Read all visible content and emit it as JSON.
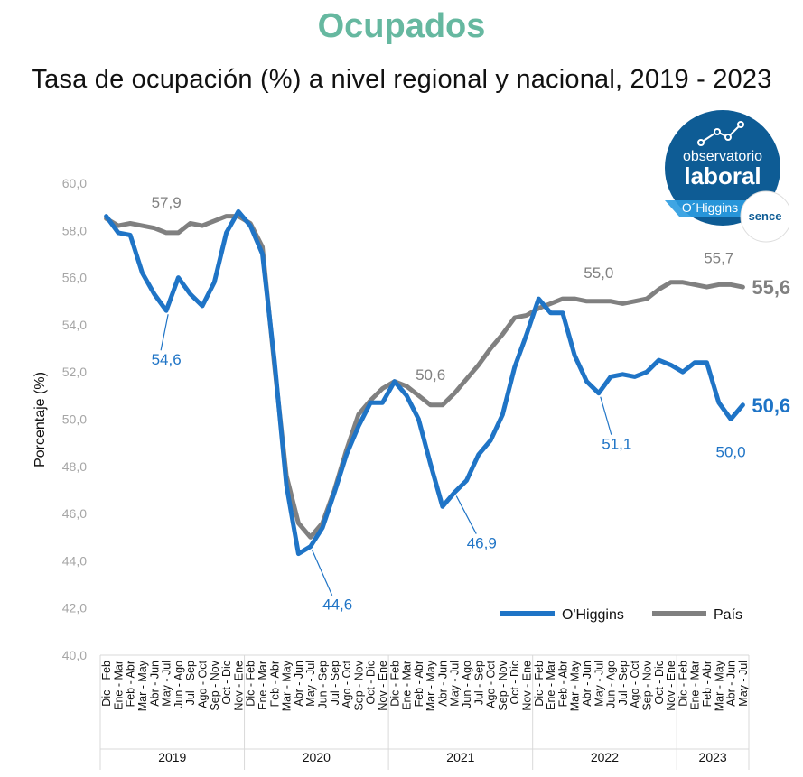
{
  "header": {
    "title": "Ocupados",
    "subtitle": "Tasa de ocupación (%) a nivel regional y nacional, 2019 - 2023"
  },
  "logo": {
    "line1": "observatorio",
    "line2": "laboral",
    "line3": "O´Higgins",
    "badge": "sence",
    "icon": "trend-line-icon"
  },
  "colors": {
    "title": "#66b8a0",
    "regional": "#1f74c6",
    "pais": "#808080",
    "logo_bg": "#0e5c95"
  },
  "chart_data": {
    "type": "line",
    "ylabel": "Porcentaje (%)",
    "xlabel": "",
    "ylim": [
      40,
      60
    ],
    "yticks": [
      "40,0",
      "42,0",
      "44,0",
      "46,0",
      "48,0",
      "50,0",
      "52,0",
      "54,0",
      "56,0",
      "58,0",
      "60,0"
    ],
    "grid": false,
    "legend": "bottom-right",
    "categories": [
      "Dic - Feb",
      "Ene - Mar",
      "Feb - Abr",
      "Mar - May",
      "Abr - Jun",
      "May - Jul",
      "Jun - Ago",
      "Jul - Sep",
      "Ago - Oct",
      "Sep - Nov",
      "Oct - Dic",
      "Nov - Ene",
      "Dic - Feb",
      "Ene - Mar",
      "Feb - Abr",
      "Mar - May",
      "Abr - Jun",
      "May - Jul",
      "Jun - Sep",
      "Jul - Sep",
      "Ago - Oct",
      "Sep - Nov",
      "Oct - Dic",
      "Nov - Ene",
      "Dic - Feb",
      "Ene - Mar",
      "Feb - Abr",
      "Mar - May",
      "Abr - Jun",
      "May - Jul",
      "Jun - Ago",
      "Jul - Sep",
      "Ago - Oct",
      "Sep - Nov",
      "Oct - Dic",
      "Nov - Ene",
      "Dic - Feb",
      "Ene - Mar",
      "Feb - Abr",
      "Mar - May",
      "Abr - Jun",
      "May - Jul",
      "Jun - Ago",
      "Jul - Sep",
      "Ago - Oct",
      "Sep - Nov",
      "Oct - Dic",
      "Nov - Ene",
      "Dic - Feb",
      "Ene - Mar",
      "Feb - Abr",
      "Mar - May",
      "Abr - Jun",
      "May - Jul"
    ],
    "years": [
      {
        "label": "2019",
        "count": 12
      },
      {
        "label": "2020",
        "count": 12
      },
      {
        "label": "2021",
        "count": 12
      },
      {
        "label": "2022",
        "count": 12
      },
      {
        "label": "2023",
        "count": 6
      }
    ],
    "series": [
      {
        "name": "O'Higgins",
        "values": [
          58.6,
          57.9,
          57.8,
          56.2,
          55.3,
          54.6,
          56.0,
          55.3,
          54.8,
          55.8,
          57.9,
          58.8,
          58.2,
          57.0,
          52.5,
          47.2,
          44.3,
          44.6,
          45.4,
          46.9,
          48.5,
          49.7,
          50.7,
          50.7,
          51.6,
          51.0,
          50.0,
          48.1,
          46.3,
          46.9,
          47.4,
          48.5,
          49.1,
          50.2,
          52.2,
          53.6,
          55.1,
          54.5,
          54.5,
          52.7,
          51.6,
          51.1,
          51.8,
          51.9,
          51.8,
          52.0,
          52.5,
          52.3,
          52.0,
          52.4,
          52.4,
          50.7,
          50.0,
          50.6
        ]
      },
      {
        "name": "País",
        "values": [
          58.5,
          58.2,
          58.3,
          58.2,
          58.1,
          57.9,
          57.9,
          58.3,
          58.2,
          58.4,
          58.6,
          58.6,
          58.3,
          57.3,
          52.3,
          47.6,
          45.6,
          45.0,
          45.6,
          47.0,
          48.7,
          50.2,
          50.8,
          51.3,
          51.6,
          51.4,
          51.0,
          50.6,
          50.6,
          51.1,
          51.7,
          52.3,
          53.0,
          53.6,
          54.3,
          54.4,
          54.7,
          54.9,
          55.1,
          55.1,
          55.0,
          55.0,
          55.0,
          54.9,
          55.0,
          55.1,
          55.5,
          55.8,
          55.8,
          55.7,
          55.6,
          55.7,
          55.7,
          55.6
        ]
      }
    ],
    "annotations": [
      {
        "text": "57,9",
        "series": 1,
        "index": 5
      },
      {
        "text": "54,6",
        "series": 0,
        "index": 5
      },
      {
        "text": "44,6",
        "series": 0,
        "index": 17
      },
      {
        "text": "50,6",
        "series": 1,
        "index": 27
      },
      {
        "text": "46,9",
        "series": 0,
        "index": 29
      },
      {
        "text": "55,0",
        "series": 1,
        "index": 41
      },
      {
        "text": "51,1",
        "series": 0,
        "index": 41
      },
      {
        "text": "55,7",
        "series": 1,
        "index": 51
      },
      {
        "text": "50,0",
        "series": 0,
        "index": 52
      }
    ],
    "end_labels": [
      {
        "text": "55,6",
        "series": 1
      },
      {
        "text": "50,6",
        "series": 0
      }
    ]
  }
}
